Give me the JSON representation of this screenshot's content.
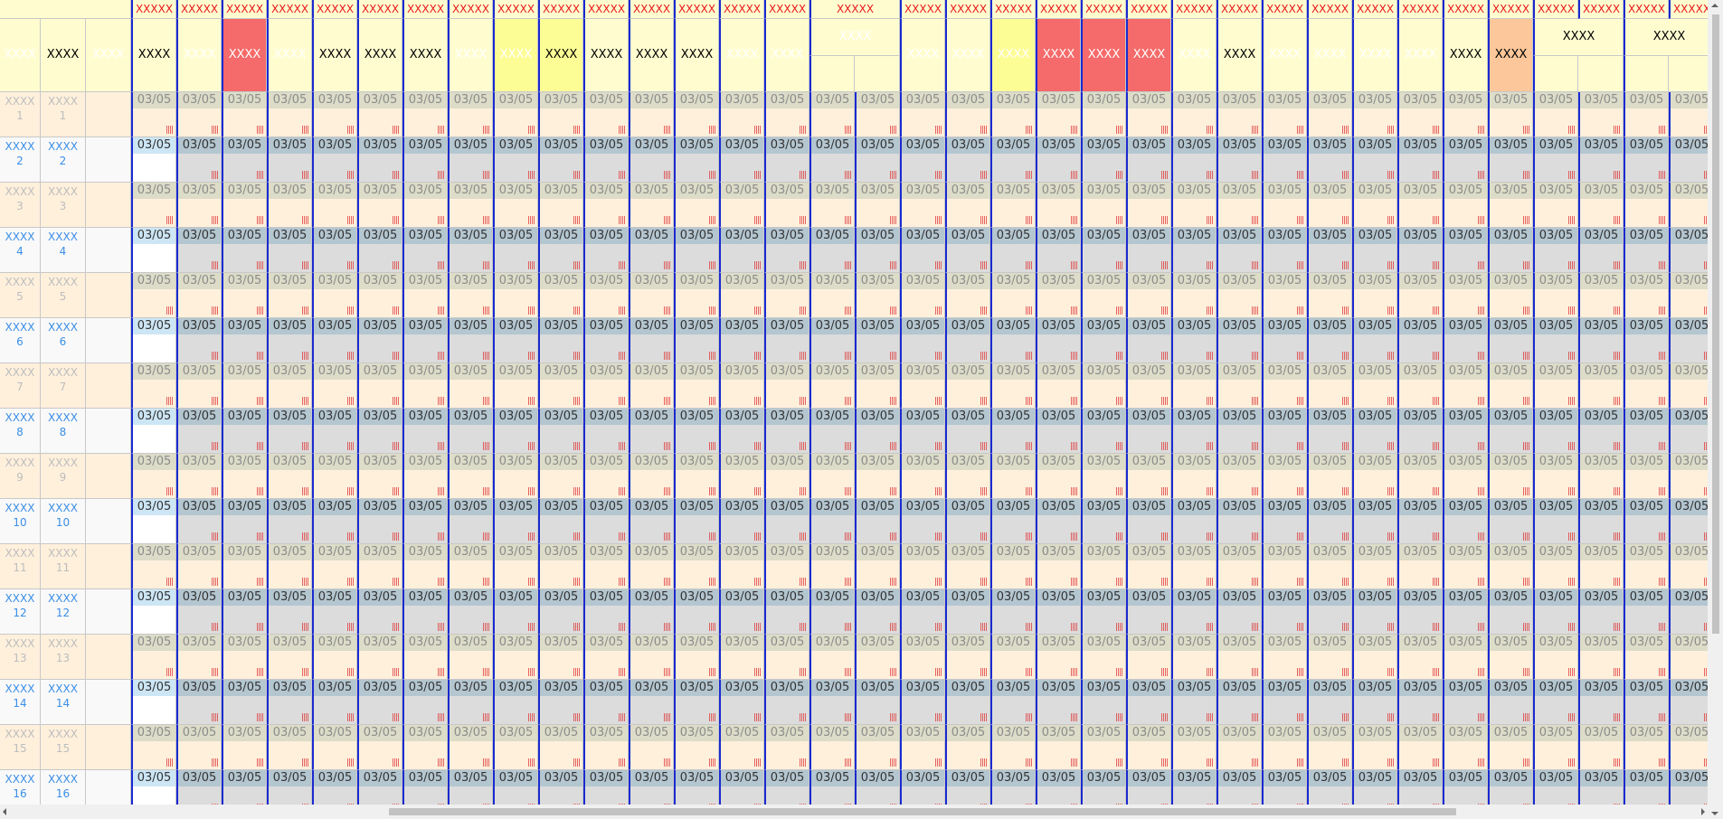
{
  "left_header": [
    {
      "text": "XXXX",
      "color": "#ffffff"
    },
    {
      "text": "XXXX",
      "color": "#000000"
    },
    {
      "text": "XXXX",
      "color": "#ffffff"
    }
  ],
  "top_row": [
    {
      "text": "XXXXX"
    },
    {
      "text": "XXXXX"
    },
    {
      "text": "XXXXX"
    },
    {
      "text": "XXXXX"
    },
    {
      "text": "XXXXX"
    },
    {
      "text": "XXXXX"
    },
    {
      "text": "XXXXX"
    },
    {
      "text": "XXXXX"
    },
    {
      "text": "XXXXX"
    },
    {
      "text": "XXXXX"
    },
    {
      "text": "XXXXX"
    },
    {
      "text": "XXXXX"
    },
    {
      "text": "XXXXX"
    },
    {
      "text": "XXXXX"
    },
    {
      "text": "XXXXX"
    },
    {
      "text": "XXXXX",
      "span": 2
    },
    {
      "text": "XXXXX"
    },
    {
      "text": "XXXXX"
    },
    {
      "text": "XXXXX"
    },
    {
      "text": "XXXXX"
    },
    {
      "text": "XXXXX"
    },
    {
      "text": "XXXXX"
    },
    {
      "text": "XXXXX"
    },
    {
      "text": "XXXXX"
    },
    {
      "text": "XXXXX"
    },
    {
      "text": "XXXXX"
    },
    {
      "text": "XXXXX"
    },
    {
      "text": "XXXXX"
    },
    {
      "text": "XXXXX"
    },
    {
      "text": "XXXXX"
    },
    {
      "text": "XXXXX"
    },
    {
      "text": "XXXXX"
    },
    {
      "text": "XXXXX"
    },
    {
      "text": "XXXXX"
    }
  ],
  "header_row": [
    {
      "text": "XXXX",
      "bg": "#fffdd0",
      "color": "#000000"
    },
    {
      "text": "XXXX",
      "bg": "#fffdd0",
      "color": "#ffffff"
    },
    {
      "text": "XXXX",
      "bg": "#f56a6a",
      "color": "#ffffff"
    },
    {
      "text": "XXXX",
      "bg": "#fffdd0",
      "color": "#ffffff"
    },
    {
      "text": "XXXX",
      "bg": "#fffdd0",
      "color": "#000000"
    },
    {
      "text": "XXXX",
      "bg": "#fffdd0",
      "color": "#000000"
    },
    {
      "text": "XXXX",
      "bg": "#fffdd0",
      "color": "#000000"
    },
    {
      "text": "XXXX",
      "bg": "#fffdd0",
      "color": "#ffffff"
    },
    {
      "text": "XXXX",
      "bg": "#fdfd96",
      "color": "#ffffff"
    },
    {
      "text": "XXXX",
      "bg": "#fdfd96",
      "color": "#000000"
    },
    {
      "text": "XXXX",
      "bg": "#fffdd0",
      "color": "#000000"
    },
    {
      "text": "XXXX",
      "bg": "#fffdd0",
      "color": "#000000"
    },
    {
      "text": "XXXX",
      "bg": "#fffdd0",
      "color": "#000000"
    },
    {
      "text": "XXXX",
      "bg": "#fffdd0",
      "color": "#ffffff"
    },
    {
      "text": "XXXX",
      "bg": "#fffdd0",
      "color": "#ffffff"
    },
    {
      "text": "XXXX",
      "bg": "#fffdd0",
      "color": "#ffffff",
      "span": 2
    },
    {
      "text": "XXXX",
      "bg": "#fffdd0",
      "color": "#ffffff"
    },
    {
      "text": "XXXX",
      "bg": "#fffdd0",
      "color": "#ffffff"
    },
    {
      "text": "XXXX",
      "bg": "#fdfd96",
      "color": "#ffffff"
    },
    {
      "text": "XXXX",
      "bg": "#f56a6a",
      "color": "#ffffff"
    },
    {
      "text": "XXXX",
      "bg": "#f56a6a",
      "color": "#ffffff"
    },
    {
      "text": "XXXX",
      "bg": "#f56a6a",
      "color": "#ffffff"
    },
    {
      "text": "XXXX",
      "bg": "#fffdd0",
      "color": "#ffffff"
    },
    {
      "text": "XXXX",
      "bg": "#fffdd0",
      "color": "#000000"
    },
    {
      "text": "XXXX",
      "bg": "#fffdd0",
      "color": "#ffffff"
    },
    {
      "text": "XXXX",
      "bg": "#fffdd0",
      "color": "#ffffff"
    },
    {
      "text": "XXXX",
      "bg": "#fffdd0",
      "color": "#ffffff"
    },
    {
      "text": "XXXX",
      "bg": "#fffdd0",
      "color": "#ffffff"
    },
    {
      "text": "XXXX",
      "bg": "#fffdd0",
      "color": "#000000"
    },
    {
      "text": "XXXX",
      "bg": "#fcc79a",
      "color": "#000000"
    },
    {
      "text": "XXXX",
      "bg": "#fffdd0",
      "color": "#000000",
      "span": 2
    },
    {
      "text": "XXXX",
      "bg": "#fffdd0",
      "color": "#000000",
      "span": 2
    }
  ],
  "rows": [
    {
      "labels": [
        {
          "text": "XXXX",
          "num": "1"
        },
        {
          "text": "XXXX",
          "num": "1"
        }
      ],
      "dates": [
        "03/05",
        "03/05",
        "03/05",
        "03/05",
        "03/05",
        "03/05",
        "03/05",
        "03/05",
        "03/05",
        "03/05",
        "03/05",
        "03/05",
        "03/05",
        "03/05",
        "03/05",
        "03/05",
        "03/05",
        "03/05",
        "03/05",
        "03/05",
        "03/05",
        "03/05",
        "03/05",
        "03/05",
        "03/05",
        "03/05",
        "03/05",
        "03/05",
        "03/05",
        "03/05",
        "03/05",
        "03/05",
        "03/05",
        "03/05",
        "03/05"
      ]
    },
    {
      "labels": [
        {
          "text": "XXXX",
          "num": "2"
        },
        {
          "text": "XXXX",
          "num": "2"
        }
      ],
      "dates": [
        "03/05",
        "03/05",
        "03/05",
        "03/05",
        "03/05",
        "03/05",
        "03/05",
        "03/05",
        "03/05",
        "03/05",
        "03/05",
        "03/05",
        "03/05",
        "03/05",
        "03/05",
        "03/05",
        "03/05",
        "03/05",
        "03/05",
        "03/05",
        "03/05",
        "03/05",
        "03/05",
        "03/05",
        "03/05",
        "03/05",
        "03/05",
        "03/05",
        "03/05",
        "03/05",
        "03/05",
        "03/05",
        "03/05",
        "03/05",
        "03/05"
      ]
    },
    {
      "labels": [
        {
          "text": "XXXX",
          "num": "3"
        },
        {
          "text": "XXXX",
          "num": "3"
        }
      ],
      "dates": [
        "03/05",
        "03/05",
        "03/05",
        "03/05",
        "03/05",
        "03/05",
        "03/05",
        "03/05",
        "03/05",
        "03/05",
        "03/05",
        "03/05",
        "03/05",
        "03/05",
        "03/05",
        "03/05",
        "03/05",
        "03/05",
        "03/05",
        "03/05",
        "03/05",
        "03/05",
        "03/05",
        "03/05",
        "03/05",
        "03/05",
        "03/05",
        "03/05",
        "03/05",
        "03/05",
        "03/05",
        "03/05",
        "03/05",
        "03/05",
        "03/05"
      ]
    },
    {
      "labels": [
        {
          "text": "XXXX",
          "num": "4"
        },
        {
          "text": "XXXX",
          "num": "4"
        }
      ],
      "dates": [
        "03/05",
        "03/05",
        "03/05",
        "03/05",
        "03/05",
        "03/05",
        "03/05",
        "03/05",
        "03/05",
        "03/05",
        "03/05",
        "03/05",
        "03/05",
        "03/05",
        "03/05",
        "03/05",
        "03/05",
        "03/05",
        "03/05",
        "03/05",
        "03/05",
        "03/05",
        "03/05",
        "03/05",
        "03/05",
        "03/05",
        "03/05",
        "03/05",
        "03/05",
        "03/05",
        "03/05",
        "03/05",
        "03/05",
        "03/05",
        "03/05"
      ]
    },
    {
      "labels": [
        {
          "text": "XXXX",
          "num": "5"
        },
        {
          "text": "XXXX",
          "num": "5"
        }
      ],
      "dates": [
        "03/05",
        "03/05",
        "03/05",
        "03/05",
        "03/05",
        "03/05",
        "03/05",
        "03/05",
        "03/05",
        "03/05",
        "03/05",
        "03/05",
        "03/05",
        "03/05",
        "03/05",
        "03/05",
        "03/05",
        "03/05",
        "03/05",
        "03/05",
        "03/05",
        "03/05",
        "03/05",
        "03/05",
        "03/05",
        "03/05",
        "03/05",
        "03/05",
        "03/05",
        "03/05",
        "03/05",
        "03/05",
        "03/05",
        "03/05",
        "03/05"
      ]
    },
    {
      "labels": [
        {
          "text": "XXXX",
          "num": "6"
        },
        {
          "text": "XXXX",
          "num": "6"
        }
      ],
      "dates": [
        "03/05",
        "03/05",
        "03/05",
        "03/05",
        "03/05",
        "03/05",
        "03/05",
        "03/05",
        "03/05",
        "03/05",
        "03/05",
        "03/05",
        "03/05",
        "03/05",
        "03/05",
        "03/05",
        "03/05",
        "03/05",
        "03/05",
        "03/05",
        "03/05",
        "03/05",
        "03/05",
        "03/05",
        "03/05",
        "03/05",
        "03/05",
        "03/05",
        "03/05",
        "03/05",
        "03/05",
        "03/05",
        "03/05",
        "03/05",
        "03/05"
      ]
    },
    {
      "labels": [
        {
          "text": "XXXX",
          "num": "7"
        },
        {
          "text": "XXXX",
          "num": "7"
        }
      ],
      "dates": [
        "03/05",
        "03/05",
        "03/05",
        "03/05",
        "03/05",
        "03/05",
        "03/05",
        "03/05",
        "03/05",
        "03/05",
        "03/05",
        "03/05",
        "03/05",
        "03/05",
        "03/05",
        "03/05",
        "03/05",
        "03/05",
        "03/05",
        "03/05",
        "03/05",
        "03/05",
        "03/05",
        "03/05",
        "03/05",
        "03/05",
        "03/05",
        "03/05",
        "03/05",
        "03/05",
        "03/05",
        "03/05",
        "03/05",
        "03/05",
        "03/05"
      ]
    },
    {
      "labels": [
        {
          "text": "XXXX",
          "num": "8"
        },
        {
          "text": "XXXX",
          "num": "8"
        }
      ],
      "dates": [
        "03/05",
        "03/05",
        "03/05",
        "03/05",
        "03/05",
        "03/05",
        "03/05",
        "03/05",
        "03/05",
        "03/05",
        "03/05",
        "03/05",
        "03/05",
        "03/05",
        "03/05",
        "03/05",
        "03/05",
        "03/05",
        "03/05",
        "03/05",
        "03/05",
        "03/05",
        "03/05",
        "03/05",
        "03/05",
        "03/05",
        "03/05",
        "03/05",
        "03/05",
        "03/05",
        "03/05",
        "03/05",
        "03/05",
        "03/05",
        "03/05"
      ]
    },
    {
      "labels": [
        {
          "text": "XXXX",
          "num": "9"
        },
        {
          "text": "XXXX",
          "num": "9"
        }
      ],
      "dates": [
        "03/05",
        "03/05",
        "03/05",
        "03/05",
        "03/05",
        "03/05",
        "03/05",
        "03/05",
        "03/05",
        "03/05",
        "03/05",
        "03/05",
        "03/05",
        "03/05",
        "03/05",
        "03/05",
        "03/05",
        "03/05",
        "03/05",
        "03/05",
        "03/05",
        "03/05",
        "03/05",
        "03/05",
        "03/05",
        "03/05",
        "03/05",
        "03/05",
        "03/05",
        "03/05",
        "03/05",
        "03/05",
        "03/05",
        "03/05",
        "03/05"
      ]
    },
    {
      "labels": [
        {
          "text": "XXXX",
          "num": "10"
        },
        {
          "text": "XXXX",
          "num": "10"
        }
      ],
      "dates": [
        "03/05",
        "03/05",
        "03/05",
        "03/05",
        "03/05",
        "03/05",
        "03/05",
        "03/05",
        "03/05",
        "03/05",
        "03/05",
        "03/05",
        "03/05",
        "03/05",
        "03/05",
        "03/05",
        "03/05",
        "03/05",
        "03/05",
        "03/05",
        "03/05",
        "03/05",
        "03/05",
        "03/05",
        "03/05",
        "03/05",
        "03/05",
        "03/05",
        "03/05",
        "03/05",
        "03/05",
        "03/05",
        "03/05",
        "03/05",
        "03/05"
      ]
    },
    {
      "labels": [
        {
          "text": "XXXX",
          "num": "11"
        },
        {
          "text": "XXXX",
          "num": "11"
        }
      ],
      "dates": [
        "03/05",
        "03/05",
        "03/05",
        "03/05",
        "03/05",
        "03/05",
        "03/05",
        "03/05",
        "03/05",
        "03/05",
        "03/05",
        "03/05",
        "03/05",
        "03/05",
        "03/05",
        "03/05",
        "03/05",
        "03/05",
        "03/05",
        "03/05",
        "03/05",
        "03/05",
        "03/05",
        "03/05",
        "03/05",
        "03/05",
        "03/05",
        "03/05",
        "03/05",
        "03/05",
        "03/05",
        "03/05",
        "03/05",
        "03/05",
        "03/05"
      ]
    },
    {
      "labels": [
        {
          "text": "XXXX",
          "num": "12"
        },
        {
          "text": "XXXX",
          "num": "12"
        }
      ],
      "dates": [
        "03/05",
        "03/05",
        "03/05",
        "03/05",
        "03/05",
        "03/05",
        "03/05",
        "03/05",
        "03/05",
        "03/05",
        "03/05",
        "03/05",
        "03/05",
        "03/05",
        "03/05",
        "03/05",
        "03/05",
        "03/05",
        "03/05",
        "03/05",
        "03/05",
        "03/05",
        "03/05",
        "03/05",
        "03/05",
        "03/05",
        "03/05",
        "03/05",
        "03/05",
        "03/05",
        "03/05",
        "03/05",
        "03/05",
        "03/05",
        "03/05"
      ]
    },
    {
      "labels": [
        {
          "text": "XXXX",
          "num": "13"
        },
        {
          "text": "XXXX",
          "num": "13"
        }
      ],
      "dates": [
        "03/05",
        "03/05",
        "03/05",
        "03/05",
        "03/05",
        "03/05",
        "03/05",
        "03/05",
        "03/05",
        "03/05",
        "03/05",
        "03/05",
        "03/05",
        "03/05",
        "03/05",
        "03/05",
        "03/05",
        "03/05",
        "03/05",
        "03/05",
        "03/05",
        "03/05",
        "03/05",
        "03/05",
        "03/05",
        "03/05",
        "03/05",
        "03/05",
        "03/05",
        "03/05",
        "03/05",
        "03/05",
        "03/05",
        "03/05",
        "03/05"
      ]
    },
    {
      "labels": [
        {
          "text": "XXXX",
          "num": "14"
        },
        {
          "text": "XXXX",
          "num": "14"
        }
      ],
      "dates": [
        "03/05",
        "03/05",
        "03/05",
        "03/05",
        "03/05",
        "03/05",
        "03/05",
        "03/05",
        "03/05",
        "03/05",
        "03/05",
        "03/05",
        "03/05",
        "03/05",
        "03/05",
        "03/05",
        "03/05",
        "03/05",
        "03/05",
        "03/05",
        "03/05",
        "03/05",
        "03/05",
        "03/05",
        "03/05",
        "03/05",
        "03/05",
        "03/05",
        "03/05",
        "03/05",
        "03/05",
        "03/05",
        "03/05",
        "03/05",
        "03/05"
      ]
    },
    {
      "labels": [
        {
          "text": "XXXX",
          "num": "15"
        },
        {
          "text": "XXXX",
          "num": "15"
        }
      ],
      "dates": [
        "03/05",
        "03/05",
        "03/05",
        "03/05",
        "03/05",
        "03/05",
        "03/05",
        "03/05",
        "03/05",
        "03/05",
        "03/05",
        "03/05",
        "03/05",
        "03/05",
        "03/05",
        "03/05",
        "03/05",
        "03/05",
        "03/05",
        "03/05",
        "03/05",
        "03/05",
        "03/05",
        "03/05",
        "03/05",
        "03/05",
        "03/05",
        "03/05",
        "03/05",
        "03/05",
        "03/05",
        "03/05",
        "03/05",
        "03/05",
        "03/05"
      ]
    },
    {
      "labels": [
        {
          "text": "XXXX",
          "num": "16"
        },
        {
          "text": "XXXX",
          "num": "16"
        }
      ],
      "dates": [
        "03/05",
        "03/05",
        "03/05",
        "03/05",
        "03/05",
        "03/05",
        "03/05",
        "03/05",
        "03/05",
        "03/05",
        "03/05",
        "03/05",
        "03/05",
        "03/05",
        "03/05",
        "03/05",
        "03/05",
        "03/05",
        "03/05",
        "03/05",
        "03/05",
        "03/05",
        "03/05",
        "03/05",
        "03/05",
        "03/05",
        "03/05",
        "03/05",
        "03/05",
        "03/05",
        "03/05",
        "03/05",
        "03/05",
        "03/05",
        "03/05"
      ]
    }
  ]
}
